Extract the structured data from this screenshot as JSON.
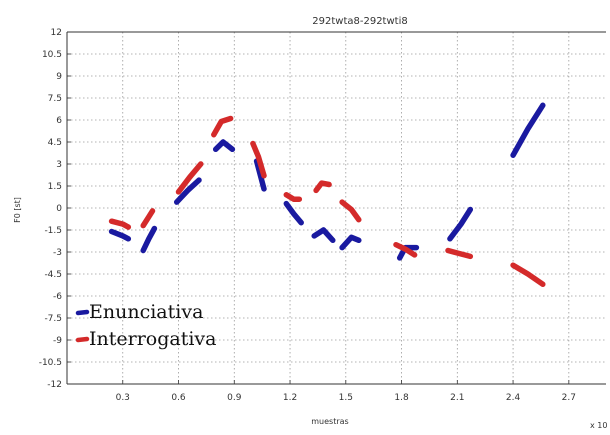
{
  "chart_data": {
    "type": "line",
    "title": "292twta8-292twti8",
    "xlabel": "muestras",
    "ylabel": "F0 [st]",
    "x_multiplier": "x 10",
    "xlim": [
      0,
      2.9
    ],
    "ylim": [
      -12,
      12
    ],
    "xticks": [
      "0.3",
      "0.6",
      "0.9",
      "1.2",
      "1.5",
      "1.8",
      "2.1",
      "2.4",
      "2.7"
    ],
    "yticks": [
      "12",
      "10.5",
      "9",
      "7.5",
      "6",
      "4.5",
      "3",
      "1.5",
      "0",
      "-1.5",
      "-3",
      "-4.5",
      "-6",
      "-7.5",
      "-9",
      "-10.5",
      "-12"
    ],
    "grid": true,
    "legend_position": "bottom-left",
    "colors": {
      "Enunciativa": "#1a1aa0",
      "Interrogativa": "#d42a2a",
      "grid": "#9a9a9a"
    },
    "series": [
      {
        "name": "Enunciativa",
        "segments": [
          [
            [
              0.24,
              -1.6
            ],
            [
              0.3,
              -1.9
            ],
            [
              0.33,
              -2.1
            ]
          ],
          [
            [
              0.41,
              -2.9
            ],
            [
              0.44,
              -2.1
            ],
            [
              0.47,
              -1.4
            ]
          ],
          [
            [
              0.59,
              0.4
            ],
            [
              0.65,
              1.2
            ],
            [
              0.71,
              1.9
            ]
          ],
          [
            [
              0.8,
              4.0
            ],
            [
              0.84,
              4.5
            ],
            [
              0.89,
              4.0
            ]
          ],
          [
            [
              1.02,
              3.2
            ],
            [
              1.06,
              1.3
            ]
          ],
          [
            [
              1.18,
              0.3
            ],
            [
              1.22,
              -0.4
            ],
            [
              1.26,
              -1.0
            ]
          ],
          [
            [
              1.33,
              -1.9
            ],
            [
              1.38,
              -1.5
            ],
            [
              1.43,
              -2.2
            ]
          ],
          [
            [
              1.48,
              -2.7
            ],
            [
              1.53,
              -2.0
            ],
            [
              1.57,
              -2.2
            ]
          ],
          [
            [
              1.79,
              -3.4
            ],
            [
              1.82,
              -2.7
            ],
            [
              1.88,
              -2.7
            ]
          ],
          [
            [
              2.06,
              -2.1
            ],
            [
              2.12,
              -1.1
            ],
            [
              2.17,
              -0.1
            ]
          ],
          [
            [
              2.4,
              3.6
            ],
            [
              2.48,
              5.4
            ],
            [
              2.56,
              7.0
            ]
          ]
        ]
      },
      {
        "name": "Interrogativa",
        "segments": [
          [
            [
              0.24,
              -0.9
            ],
            [
              0.3,
              -1.1
            ],
            [
              0.33,
              -1.3
            ]
          ],
          [
            [
              0.41,
              -1.2
            ],
            [
              0.44,
              -0.6
            ],
            [
              0.46,
              -0.2
            ]
          ],
          [
            [
              0.6,
              1.1
            ],
            [
              0.66,
              2.1
            ],
            [
              0.72,
              3.0
            ]
          ],
          [
            [
              0.79,
              5.0
            ],
            [
              0.83,
              5.9
            ],
            [
              0.88,
              6.1
            ]
          ],
          [
            [
              1.0,
              4.4
            ],
            [
              1.03,
              3.5
            ],
            [
              1.06,
              2.2
            ]
          ],
          [
            [
              1.18,
              0.9
            ],
            [
              1.22,
              0.6
            ],
            [
              1.25,
              0.6
            ]
          ],
          [
            [
              1.34,
              1.2
            ],
            [
              1.37,
              1.7
            ],
            [
              1.41,
              1.6
            ]
          ],
          [
            [
              1.48,
              0.4
            ],
            [
              1.53,
              -0.1
            ],
            [
              1.57,
              -0.8
            ]
          ],
          [
            [
              1.77,
              -2.5
            ],
            [
              1.82,
              -2.8
            ],
            [
              1.87,
              -3.2
            ]
          ],
          [
            [
              2.05,
              -2.9
            ],
            [
              2.11,
              -3.1
            ],
            [
              2.17,
              -3.3
            ]
          ],
          [
            [
              2.4,
              -3.9
            ],
            [
              2.48,
              -4.5
            ],
            [
              2.56,
              -5.2
            ]
          ]
        ]
      }
    ]
  }
}
